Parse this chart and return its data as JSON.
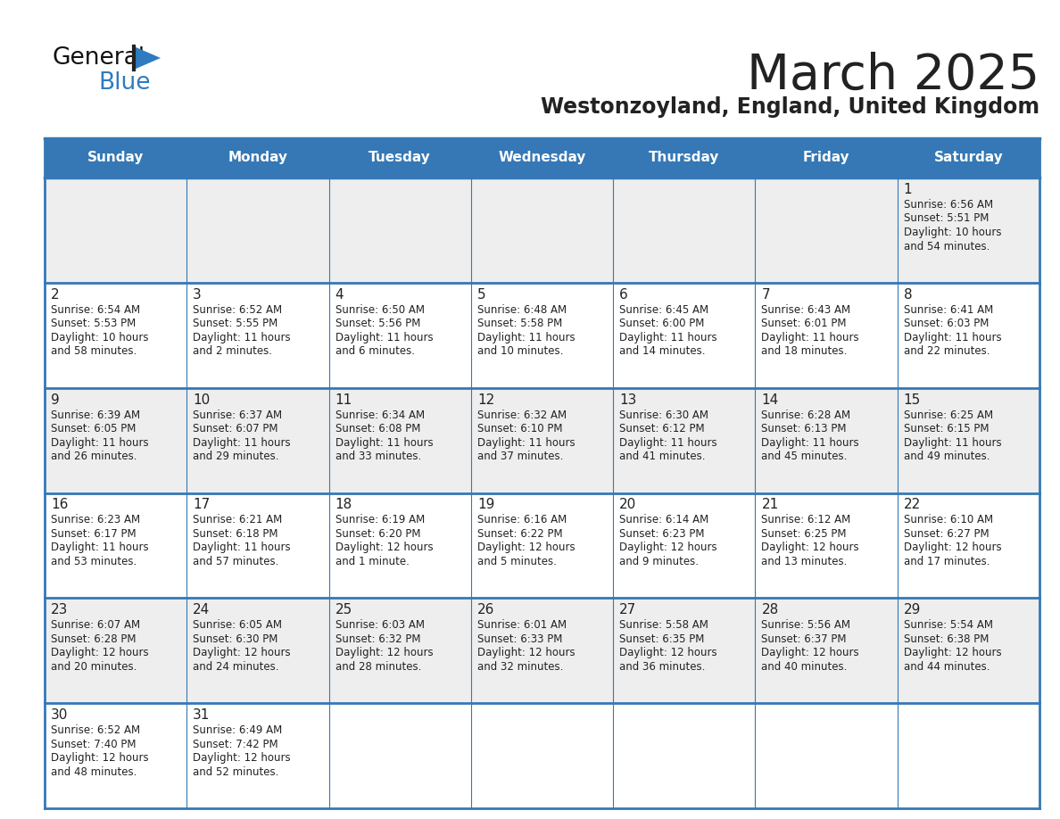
{
  "title": "March 2025",
  "subtitle": "Westonzoyland, England, United Kingdom",
  "days_of_week": [
    "Sunday",
    "Monday",
    "Tuesday",
    "Wednesday",
    "Thursday",
    "Friday",
    "Saturday"
  ],
  "header_bg": "#3578b5",
  "header_text_color": "#ffffff",
  "cell_bg_even": "#eeeeee",
  "cell_bg_odd": "#ffffff",
  "border_color": "#3578b5",
  "text_color": "#222222",
  "calendar_data": [
    [
      null,
      null,
      null,
      null,
      null,
      null,
      {
        "day": "1",
        "sunrise": "6:56 AM",
        "sunset": "5:51 PM",
        "dh": "10 hours",
        "dm": "and 54 minutes"
      }
    ],
    [
      {
        "day": "2",
        "sunrise": "6:54 AM",
        "sunset": "5:53 PM",
        "dh": "10 hours",
        "dm": "and 58 minutes"
      },
      {
        "day": "3",
        "sunrise": "6:52 AM",
        "sunset": "5:55 PM",
        "dh": "11 hours",
        "dm": "and 2 minutes"
      },
      {
        "day": "4",
        "sunrise": "6:50 AM",
        "sunset": "5:56 PM",
        "dh": "11 hours",
        "dm": "and 6 minutes"
      },
      {
        "day": "5",
        "sunrise": "6:48 AM",
        "sunset": "5:58 PM",
        "dh": "11 hours",
        "dm": "and 10 minutes"
      },
      {
        "day": "6",
        "sunrise": "6:45 AM",
        "sunset": "6:00 PM",
        "dh": "11 hours",
        "dm": "and 14 minutes"
      },
      {
        "day": "7",
        "sunrise": "6:43 AM",
        "sunset": "6:01 PM",
        "dh": "11 hours",
        "dm": "and 18 minutes"
      },
      {
        "day": "8",
        "sunrise": "6:41 AM",
        "sunset": "6:03 PM",
        "dh": "11 hours",
        "dm": "and 22 minutes"
      }
    ],
    [
      {
        "day": "9",
        "sunrise": "6:39 AM",
        "sunset": "6:05 PM",
        "dh": "11 hours",
        "dm": "and 26 minutes"
      },
      {
        "day": "10",
        "sunrise": "6:37 AM",
        "sunset": "6:07 PM",
        "dh": "11 hours",
        "dm": "and 29 minutes"
      },
      {
        "day": "11",
        "sunrise": "6:34 AM",
        "sunset": "6:08 PM",
        "dh": "11 hours",
        "dm": "and 33 minutes"
      },
      {
        "day": "12",
        "sunrise": "6:32 AM",
        "sunset": "6:10 PM",
        "dh": "11 hours",
        "dm": "and 37 minutes"
      },
      {
        "day": "13",
        "sunrise": "6:30 AM",
        "sunset": "6:12 PM",
        "dh": "11 hours",
        "dm": "and 41 minutes"
      },
      {
        "day": "14",
        "sunrise": "6:28 AM",
        "sunset": "6:13 PM",
        "dh": "11 hours",
        "dm": "and 45 minutes"
      },
      {
        "day": "15",
        "sunrise": "6:25 AM",
        "sunset": "6:15 PM",
        "dh": "11 hours",
        "dm": "and 49 minutes"
      }
    ],
    [
      {
        "day": "16",
        "sunrise": "6:23 AM",
        "sunset": "6:17 PM",
        "dh": "11 hours",
        "dm": "and 53 minutes"
      },
      {
        "day": "17",
        "sunrise": "6:21 AM",
        "sunset": "6:18 PM",
        "dh": "11 hours",
        "dm": "and 57 minutes"
      },
      {
        "day": "18",
        "sunrise": "6:19 AM",
        "sunset": "6:20 PM",
        "dh": "12 hours",
        "dm": "and 1 minute"
      },
      {
        "day": "19",
        "sunrise": "6:16 AM",
        "sunset": "6:22 PM",
        "dh": "12 hours",
        "dm": "and 5 minutes"
      },
      {
        "day": "20",
        "sunrise": "6:14 AM",
        "sunset": "6:23 PM",
        "dh": "12 hours",
        "dm": "and 9 minutes"
      },
      {
        "day": "21",
        "sunrise": "6:12 AM",
        "sunset": "6:25 PM",
        "dh": "12 hours",
        "dm": "and 13 minutes"
      },
      {
        "day": "22",
        "sunrise": "6:10 AM",
        "sunset": "6:27 PM",
        "dh": "12 hours",
        "dm": "and 17 minutes"
      }
    ],
    [
      {
        "day": "23",
        "sunrise": "6:07 AM",
        "sunset": "6:28 PM",
        "dh": "12 hours",
        "dm": "and 20 minutes"
      },
      {
        "day": "24",
        "sunrise": "6:05 AM",
        "sunset": "6:30 PM",
        "dh": "12 hours",
        "dm": "and 24 minutes"
      },
      {
        "day": "25",
        "sunrise": "6:03 AM",
        "sunset": "6:32 PM",
        "dh": "12 hours",
        "dm": "and 28 minutes"
      },
      {
        "day": "26",
        "sunrise": "6:01 AM",
        "sunset": "6:33 PM",
        "dh": "12 hours",
        "dm": "and 32 minutes"
      },
      {
        "day": "27",
        "sunrise": "5:58 AM",
        "sunset": "6:35 PM",
        "dh": "12 hours",
        "dm": "and 36 minutes"
      },
      {
        "day": "28",
        "sunrise": "5:56 AM",
        "sunset": "6:37 PM",
        "dh": "12 hours",
        "dm": "and 40 minutes"
      },
      {
        "day": "29",
        "sunrise": "5:54 AM",
        "sunset": "6:38 PM",
        "dh": "12 hours",
        "dm": "and 44 minutes"
      }
    ],
    [
      {
        "day": "30",
        "sunrise": "6:52 AM",
        "sunset": "7:40 PM",
        "dh": "12 hours",
        "dm": "and 48 minutes"
      },
      {
        "day": "31",
        "sunrise": "6:49 AM",
        "sunset": "7:42 PM",
        "dh": "12 hours",
        "dm": "and 52 minutes"
      },
      null,
      null,
      null,
      null,
      null
    ]
  ]
}
